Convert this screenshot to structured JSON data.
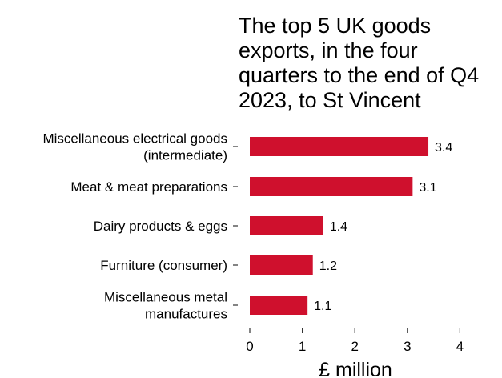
{
  "chart_data": {
    "type": "bar",
    "orientation": "horizontal",
    "title": "The top 5 UK goods exports, in the four quarters to the end of Q4 2023, to St Vincent",
    "title_lines": [
      "The top 5 UK goods",
      "exports, in the four",
      "quarters to the end of Q4",
      "2023, to St Vincent"
    ],
    "categories": [
      [
        "Miscellaneous electrical goods",
        "(intermediate)"
      ],
      [
        "Meat & meat preparations"
      ],
      [
        "Dairy products & eggs"
      ],
      [
        "Furniture (consumer)"
      ],
      [
        "Miscellaneous metal",
        "manufactures"
      ]
    ],
    "values": [
      3.4,
      3.1,
      1.4,
      1.2,
      1.1
    ],
    "data_labels": [
      "3.4",
      "3.1",
      "1.4",
      "1.2",
      "1.1"
    ],
    "xlabel": "£ million",
    "ylabel": "",
    "xlim": [
      0,
      4.5
    ],
    "xticks": [
      0,
      1,
      2,
      3,
      4
    ],
    "grid": false,
    "bar_color": "#cf102d"
  }
}
